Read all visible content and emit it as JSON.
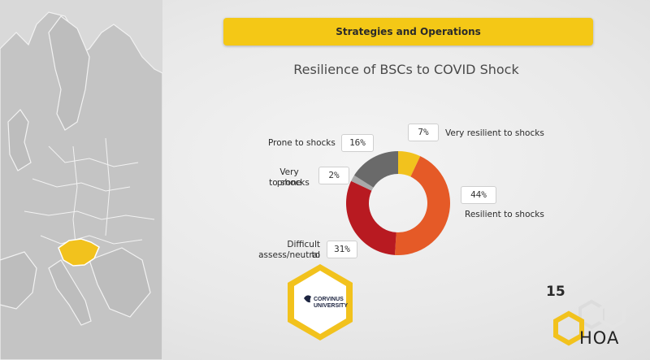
{
  "header": {
    "title": "Strategies and Operations"
  },
  "chart_data": {
    "type": "pie",
    "title": "Resilience of BSCs to COVID Shock",
    "categories": [
      "Very resilient to shocks",
      "Resilient to shocks",
      "Difficult to assess/neutral",
      "Very prone to shocks",
      "Prone to shocks"
    ],
    "values": [
      7,
      44,
      31,
      2,
      16
    ],
    "value_labels": [
      "7%",
      "44%",
      "31%",
      "2%",
      "16%"
    ],
    "colors": [
      "#f2c21d",
      "#e55a27",
      "#b81a21",
      "#a9a9a9",
      "#6a6a6a"
    ],
    "donut": true
  },
  "labels": {
    "very_resilient": "Very resilient to shocks",
    "resilient": "Resilient to shocks",
    "difficult_1": "Difficult to",
    "difficult_2": "assess/neutral",
    "very_prone_1": "Very prone",
    "very_prone_2": "to shocks",
    "prone": "Prone to shocks"
  },
  "logos": {
    "corvinus_line1": "CORVINUS",
    "corvinus_line2": "UNIVERSITY",
    "hoa_number": "15",
    "hoa_text": "HOA"
  },
  "accent_color": "#f4c816"
}
